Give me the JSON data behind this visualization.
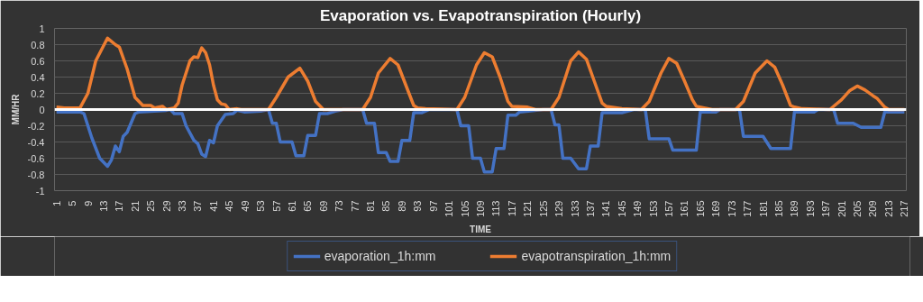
{
  "chart_data": {
    "type": "line",
    "title": "Evaporation vs. Evapotranspiration (Hourly)",
    "xlabel": "TIME",
    "ylabel": "MM/HR",
    "xlim": [
      0.5,
      217.5
    ],
    "xticks": [
      1,
      5,
      9,
      13,
      17,
      21,
      25,
      29,
      33,
      37,
      41,
      45,
      49,
      53,
      57,
      61,
      65,
      69,
      73,
      77,
      81,
      85,
      89,
      93,
      97,
      101,
      105,
      109,
      113,
      117,
      121,
      125,
      129,
      133,
      137,
      141,
      145,
      149,
      153,
      157,
      161,
      165,
      169,
      173,
      177,
      181,
      185,
      189,
      193,
      197,
      201,
      205,
      209,
      213,
      217
    ],
    "ylim": [
      -1,
      1
    ],
    "yticks": [
      -1,
      -0.8,
      -0.6,
      -0.4,
      -0.2,
      0,
      0.2,
      0.4,
      0.6,
      0.8,
      1
    ],
    "grid": "y",
    "legend": "bottom",
    "marker": "none",
    "line_style": "solid",
    "ref_lines": [
      {
        "axis": "y",
        "value": 0,
        "color": "#ffffff"
      }
    ],
    "series": [
      {
        "name": "evaporation_1h:mm",
        "color": "#4472c4",
        "x": [
          1,
          7,
          8,
          10,
          12,
          14,
          15,
          16,
          17,
          18,
          19,
          21,
          22,
          29,
          30,
          31,
          33,
          34,
          36,
          37,
          38,
          39,
          40,
          41,
          42,
          44,
          46,
          47,
          49,
          53,
          55,
          56,
          57,
          58,
          61,
          62,
          64,
          65,
          67,
          68,
          70,
          72,
          74,
          79,
          80,
          82,
          83,
          85,
          86,
          88,
          89,
          91,
          92,
          94,
          96,
          103,
          104,
          106,
          107,
          109,
          110,
          112,
          113,
          115,
          116,
          118,
          119,
          125,
          127,
          128,
          129,
          130,
          132,
          134,
          136,
          137,
          139,
          140,
          145,
          148,
          151,
          152,
          157,
          158,
          164,
          165,
          169,
          170,
          175,
          176,
          181,
          183,
          188,
          189,
          194,
          195,
          199,
          200,
          204,
          206,
          211,
          212,
          217
        ],
        "values": [
          -0.03,
          -0.03,
          -0.05,
          -0.35,
          -0.6,
          -0.7,
          -0.62,
          -0.45,
          -0.52,
          -0.33,
          -0.28,
          -0.05,
          -0.03,
          -0.01,
          0,
          -0.05,
          -0.05,
          -0.2,
          -0.38,
          -0.42,
          -0.55,
          -0.58,
          -0.38,
          -0.41,
          -0.2,
          -0.06,
          -0.05,
          -0.01,
          -0.03,
          -0.02,
          0,
          -0.17,
          -0.17,
          -0.4,
          -0.4,
          -0.57,
          -0.57,
          -0.32,
          -0.32,
          -0.05,
          -0.05,
          -0.02,
          0,
          0,
          -0.17,
          -0.17,
          -0.53,
          -0.53,
          -0.64,
          -0.64,
          -0.38,
          -0.38,
          -0.04,
          -0.04,
          0,
          0,
          -0.2,
          -0.2,
          -0.6,
          -0.6,
          -0.77,
          -0.77,
          -0.48,
          -0.48,
          -0.07,
          -0.07,
          -0.03,
          0,
          0,
          -0.19,
          -0.19,
          -0.6,
          -0.6,
          -0.73,
          -0.73,
          -0.45,
          -0.45,
          -0.04,
          -0.04,
          0,
          0,
          -0.36,
          -0.36,
          -0.5,
          -0.5,
          -0.03,
          -0.03,
          0,
          0,
          -0.33,
          -0.33,
          -0.48,
          -0.48,
          -0.03,
          -0.03,
          0,
          0,
          -0.17,
          -0.17,
          -0.22,
          -0.22,
          -0.03,
          -0.03
        ]
      },
      {
        "name": "evapotranspiration_1h:mm",
        "color": "#ed7d31",
        "x": [
          1,
          3,
          7,
          9,
          11,
          14,
          16,
          17,
          19,
          21,
          22,
          23,
          25,
          26,
          28,
          29,
          31,
          32,
          33,
          35,
          36,
          37,
          38,
          39,
          40,
          41,
          42,
          43,
          44,
          45,
          47,
          48,
          55,
          57,
          60,
          63,
          65,
          67,
          69,
          79,
          81,
          83,
          86,
          88,
          90,
          92,
          93,
          95,
          103,
          105,
          108,
          110,
          112,
          114,
          116,
          117,
          121,
          123,
          127,
          129,
          132,
          134,
          136,
          138,
          140,
          141,
          145,
          150,
          152,
          155,
          157,
          159,
          161,
          163,
          164,
          168,
          174,
          176,
          179,
          182,
          184,
          186,
          188,
          189,
          191,
          198,
          201,
          203,
          205,
          207,
          209,
          210,
          212,
          213,
          217
        ],
        "values": [
          0.03,
          0.02,
          0.02,
          0.2,
          0.6,
          0.88,
          0.8,
          0.77,
          0.5,
          0.15,
          0.1,
          0.05,
          0.05,
          0.02,
          0.04,
          0,
          0.02,
          0.08,
          0.3,
          0.6,
          0.65,
          0.64,
          0.76,
          0.7,
          0.55,
          0.3,
          0.12,
          0.07,
          0.06,
          0,
          0.01,
          0,
          0,
          0.15,
          0.4,
          0.51,
          0.35,
          0.1,
          0,
          0,
          0.15,
          0.45,
          0.63,
          0.55,
          0.3,
          0.05,
          0.02,
          0.01,
          0,
          0.15,
          0.55,
          0.7,
          0.65,
          0.4,
          0.1,
          0.04,
          0.03,
          0,
          0,
          0.15,
          0.6,
          0.71,
          0.62,
          0.35,
          0.08,
          0.04,
          0.01,
          0,
          0.1,
          0.45,
          0.63,
          0.57,
          0.35,
          0.12,
          0.04,
          0,
          0,
          0.1,
          0.45,
          0.6,
          0.52,
          0.3,
          0.05,
          0.03,
          0.01,
          0,
          0.12,
          0.23,
          0.29,
          0.24,
          0.17,
          0.14,
          0.03,
          0,
          0
        ]
      }
    ]
  }
}
